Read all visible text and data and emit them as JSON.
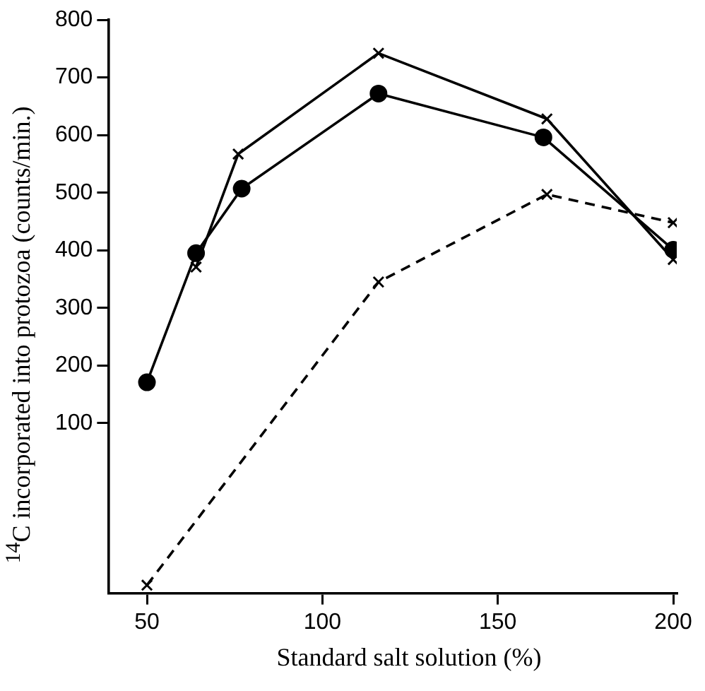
{
  "chart_data": {
    "type": "line",
    "xlabel": "Standard salt solution (%)",
    "ylabel": "$^{14}$C incorporated into protozoa (counts/min.)",
    "xlim": [
      39,
      201
    ],
    "xticks": [
      50,
      100,
      150,
      200
    ],
    "ylim": [
      -195,
      800
    ],
    "yticks": [
      100,
      200,
      300,
      400,
      500,
      600,
      700,
      800
    ],
    "grid": false,
    "legend": false,
    "series": [
      {
        "color": "#000000",
        "marker": "circle",
        "line_style": "solid",
        "x": [
          50,
          64,
          77,
          116,
          163,
          200
        ],
        "values": [
          171,
          395,
          507,
          672,
          596,
          401
        ]
      },
      {
        "color": "#000000",
        "marker": "cross",
        "line_style": "solid",
        "x": [
          64,
          76,
          116,
          164,
          200
        ],
        "values": [
          371,
          567,
          742,
          628,
          384
        ]
      },
      {
        "color": "#000000",
        "marker": "cross",
        "line_style": "dashed",
        "x": [
          50,
          116,
          164,
          200
        ],
        "values": [
          -181,
          345,
          497,
          448
        ]
      }
    ]
  }
}
